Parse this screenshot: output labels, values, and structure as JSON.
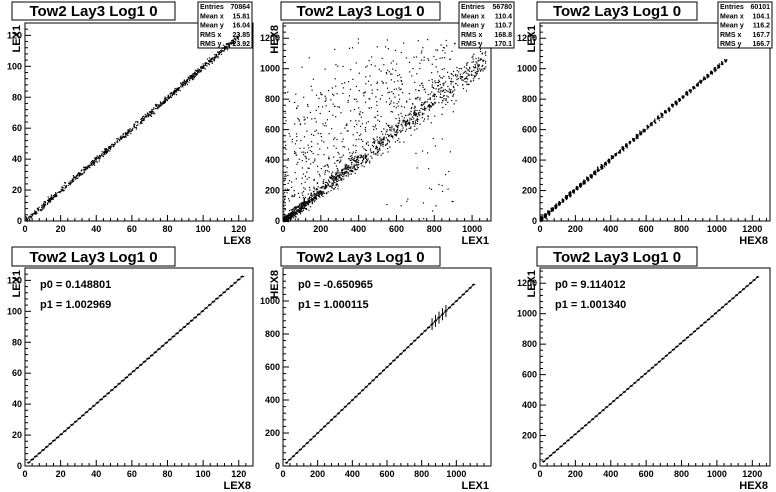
{
  "chart_data": [
    {
      "type": "scatter",
      "title": "Tow2 Lay3 Log1 0",
      "xlabel": "LEX8",
      "ylabel": "LEX1",
      "xlim": [
        0,
        128
      ],
      "ylim": [
        0,
        128
      ],
      "xticks": [
        0,
        20,
        40,
        60,
        80,
        100,
        120
      ],
      "yticks": [
        0,
        20,
        40,
        60,
        80,
        100,
        120
      ],
      "stats": [
        [
          "Entries",
          "70864"
        ],
        [
          "Mean x",
          "15.81"
        ],
        [
          "Mean y",
          "16.04"
        ],
        [
          "RMS x",
          "23.85"
        ],
        [
          "RMS y",
          "23.92"
        ]
      ],
      "trend": {
        "slope": 1.0,
        "intercept": 0.2,
        "x_range": [
          0,
          120
        ]
      },
      "spread": 1.0,
      "outlier_fraction": 0.0,
      "n_points": 0
    },
    {
      "type": "scatter",
      "title": "Tow2 Lay3 Log1 0",
      "xlabel": "LEX1",
      "ylabel": "HEX8",
      "xlim": [
        0,
        1100
      ],
      "ylim": [
        0,
        1300
      ],
      "xticks": [
        0,
        200,
        400,
        600,
        800,
        1000
      ],
      "yticks": [
        0,
        200,
        400,
        600,
        800,
        1000,
        1200
      ],
      "stats": [
        [
          "Entries",
          "56780"
        ],
        [
          "Mean x",
          "110.4"
        ],
        [
          "Mean y",
          "110.7"
        ],
        [
          "RMS x",
          "168.8"
        ],
        [
          "RMS y",
          "170.1"
        ]
      ],
      "trend": {
        "slope": 1.0,
        "intercept": 0.0,
        "x_range": [
          0,
          1070
        ]
      },
      "spread": 15,
      "outlier_fraction": 0.3,
      "n_points": 0
    },
    {
      "type": "scatter",
      "title": "Tow2 Lay3 Log1 0",
      "xlabel": "HEX8",
      "ylabel": "LEX1",
      "xlim": [
        0,
        1300
      ],
      "ylim": [
        0,
        1300
      ],
      "xticks": [
        0,
        200,
        400,
        600,
        800,
        1000,
        1200
      ],
      "yticks": [
        0,
        200,
        400,
        600,
        800,
        1000,
        1200
      ],
      "stats": [
        [
          "Entries",
          "60101"
        ],
        [
          "Mean x",
          "104.1"
        ],
        [
          "Mean y",
          "116.2"
        ],
        [
          "RMS x",
          "167.7"
        ],
        [
          "RMS y",
          "166.7"
        ]
      ],
      "trend": {
        "slope": 1.0,
        "intercept": 9.0,
        "x_range": [
          0,
          1050
        ]
      },
      "spread": 10,
      "outlier_fraction": 0.0,
      "n_points": 0
    },
    {
      "type": "line",
      "title": "Tow2 Lay3 Log1 0",
      "xlabel": "LEX8",
      "ylabel": "LEX1",
      "xlim": [
        0,
        128
      ],
      "ylim": [
        0,
        128
      ],
      "xticks": [
        0,
        20,
        40,
        60,
        80,
        100,
        120
      ],
      "yticks": [
        0,
        20,
        40,
        60,
        80,
        100,
        120
      ],
      "fit": {
        "p0": "p0 = 0.148801",
        "p1": "p1 = 1.002969",
        "slope": 1.002969,
        "intercept": 0.148801
      },
      "profile": {
        "x_range": [
          2,
          122
        ],
        "n": 60,
        "bar_half_width": 1.0
      }
    },
    {
      "type": "line",
      "title": "Tow2 Lay3 Log1 0",
      "xlabel": "LEX1",
      "ylabel": "HEX8",
      "xlim": [
        0,
        1200
      ],
      "ylim": [
        0,
        1200
      ],
      "xticks": [
        0,
        200,
        400,
        600,
        800,
        1000
      ],
      "yticks": [
        0,
        200,
        400,
        600,
        800,
        1000
      ],
      "fit": {
        "p0": "p0 = -0.650965",
        "p1": "p1 = 1.000115",
        "slope": 1.000115,
        "intercept": -0.650965
      },
      "profile": {
        "x_range": [
          20,
          1100
        ],
        "n": 55,
        "bar_half_width": 9.0
      }
    },
    {
      "type": "line",
      "title": "Tow2 Lay3 Log1 0",
      "xlabel": "HEX8",
      "ylabel": "LEX1",
      "xlim": [
        0,
        1300
      ],
      "ylim": [
        0,
        1300
      ],
      "xticks": [
        0,
        200,
        400,
        600,
        800,
        1000,
        1200
      ],
      "yticks": [
        0,
        200,
        400,
        600,
        800,
        1000,
        1200
      ],
      "fit": {
        "p0": "p0 = 9.114012",
        "p1": "p1 = 1.001340",
        "slope": 1.00134,
        "intercept": 9.114012
      },
      "profile": {
        "x_range": [
          20,
          1230
        ],
        "n": 62,
        "bar_half_width": 9.0
      }
    }
  ]
}
